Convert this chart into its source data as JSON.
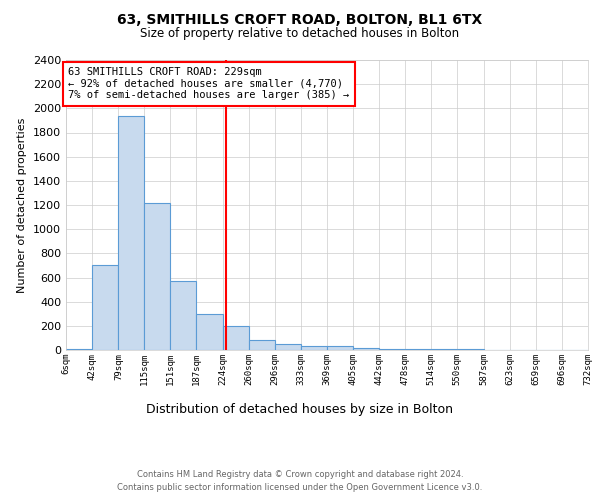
{
  "title1": "63, SMITHILLS CROFT ROAD, BOLTON, BL1 6TX",
  "title2": "Size of property relative to detached houses in Bolton",
  "xlabel": "Distribution of detached houses by size in Bolton",
  "ylabel": "Number of detached properties",
  "bin_edges": [
    6,
    42,
    79,
    115,
    151,
    187,
    224,
    260,
    296,
    333,
    369,
    405,
    442,
    478,
    514,
    550,
    587,
    623,
    659,
    696,
    732
  ],
  "bin_heights": [
    6,
    700,
    1940,
    1220,
    570,
    300,
    200,
    80,
    50,
    35,
    30,
    15,
    10,
    10,
    5,
    5,
    2,
    2,
    2,
    2
  ],
  "bar_facecolor": "#c8daee",
  "bar_edgecolor": "#5b9bd5",
  "vline_x": 229,
  "vline_color": "red",
  "annotation_text": "63 SMITHILLS CROFT ROAD: 229sqm\n← 92% of detached houses are smaller (4,770)\n7% of semi-detached houses are larger (385) →",
  "annotation_box_edgecolor": "red",
  "annotation_box_facecolor": "white",
  "ylim": [
    0,
    2400
  ],
  "yticks": [
    0,
    200,
    400,
    600,
    800,
    1000,
    1200,
    1400,
    1600,
    1800,
    2000,
    2200,
    2400
  ],
  "grid_color": "#cccccc",
  "background_color": "white",
  "footnote1": "Contains HM Land Registry data © Crown copyright and database right 2024.",
  "footnote2": "Contains public sector information licensed under the Open Government Licence v3.0."
}
